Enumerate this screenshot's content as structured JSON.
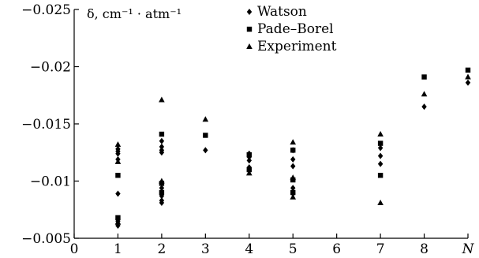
{
  "chart_data": {
    "type": "scatter",
    "title": "",
    "xlabel": "",
    "ylabel": "δ, cm⁻¹ · atm⁻¹",
    "categories": [
      "0",
      "1",
      "2",
      "3",
      "4",
      "5",
      "6",
      "7",
      "8",
      "N"
    ],
    "x_ticks": [
      0,
      1,
      2,
      3,
      4,
      5,
      6,
      7,
      8,
      9
    ],
    "x_tick_labels": [
      "0",
      "1",
      "2",
      "3",
      "4",
      "5",
      "6",
      "7",
      "8",
      "N"
    ],
    "xlim": [
      0,
      9
    ],
    "y_ticks": [
      -0.025,
      -0.02,
      -0.015,
      -0.01,
      -0.005
    ],
    "y_tick_labels": [
      "−0.025",
      "−0.02",
      "−0.015",
      "−0.01",
      "−0.005"
    ],
    "ylim": [
      -0.025,
      -0.005
    ],
    "y_axis_direction": "reversed",
    "legend_position": "top-center",
    "series": [
      {
        "name": "Watson",
        "marker": "diamond",
        "points": [
          [
            1,
            -0.0128
          ],
          [
            1,
            -0.0126
          ],
          [
            1,
            -0.0124
          ],
          [
            1,
            -0.0119
          ],
          [
            1,
            -0.0089
          ],
          [
            1,
            -0.0067
          ],
          [
            1,
            -0.0065
          ],
          [
            1,
            -0.0063
          ],
          [
            1,
            -0.0061
          ],
          [
            2,
            -0.0135
          ],
          [
            2,
            -0.013
          ],
          [
            2,
            -0.0127
          ],
          [
            2,
            -0.0125
          ],
          [
            2,
            -0.0099
          ],
          [
            2,
            -0.0094
          ],
          [
            2,
            -0.0087
          ],
          [
            2,
            -0.0083
          ],
          [
            2,
            -0.0081
          ],
          [
            3,
            -0.0127
          ],
          [
            4,
            -0.0124
          ],
          [
            4,
            -0.0121
          ],
          [
            4,
            -0.0118
          ],
          [
            4,
            -0.0112
          ],
          [
            4,
            -0.0109
          ],
          [
            5,
            -0.0127
          ],
          [
            5,
            -0.0119
          ],
          [
            5,
            -0.0113
          ],
          [
            5,
            -0.0094
          ],
          [
            5,
            -0.0089
          ],
          [
            7,
            -0.0129
          ],
          [
            7,
            -0.0122
          ],
          [
            7,
            -0.0115
          ],
          [
            8,
            -0.0165
          ],
          [
            9,
            -0.0186
          ]
        ]
      },
      {
        "name": "Pade–Borel",
        "marker": "square",
        "points": [
          [
            1,
            -0.0105
          ],
          [
            1,
            -0.0068
          ],
          [
            2,
            -0.0141
          ],
          [
            2,
            -0.0098
          ],
          [
            2,
            -0.009
          ],
          [
            3,
            -0.014
          ],
          [
            4,
            -0.0123
          ],
          [
            4,
            -0.011
          ],
          [
            5,
            -0.0127
          ],
          [
            5,
            -0.0101
          ],
          [
            5,
            -0.009
          ],
          [
            7,
            -0.0133
          ],
          [
            7,
            -0.0105
          ],
          [
            8,
            -0.0191
          ],
          [
            9,
            -0.0197
          ]
        ]
      },
      {
        "name": "Experiment",
        "marker": "triangle",
        "points": [
          [
            1,
            -0.0132
          ],
          [
            1,
            -0.0117
          ],
          [
            1,
            -0.0064
          ],
          [
            2,
            -0.0171
          ],
          [
            2,
            -0.01
          ],
          [
            3,
            -0.0154
          ],
          [
            4,
            -0.0107
          ],
          [
            5,
            -0.0134
          ],
          [
            5,
            -0.0103
          ],
          [
            5,
            -0.0086
          ],
          [
            7,
            -0.0141
          ],
          [
            7,
            -0.0081
          ],
          [
            8,
            -0.0176
          ],
          [
            9,
            -0.0191
          ]
        ]
      }
    ]
  }
}
